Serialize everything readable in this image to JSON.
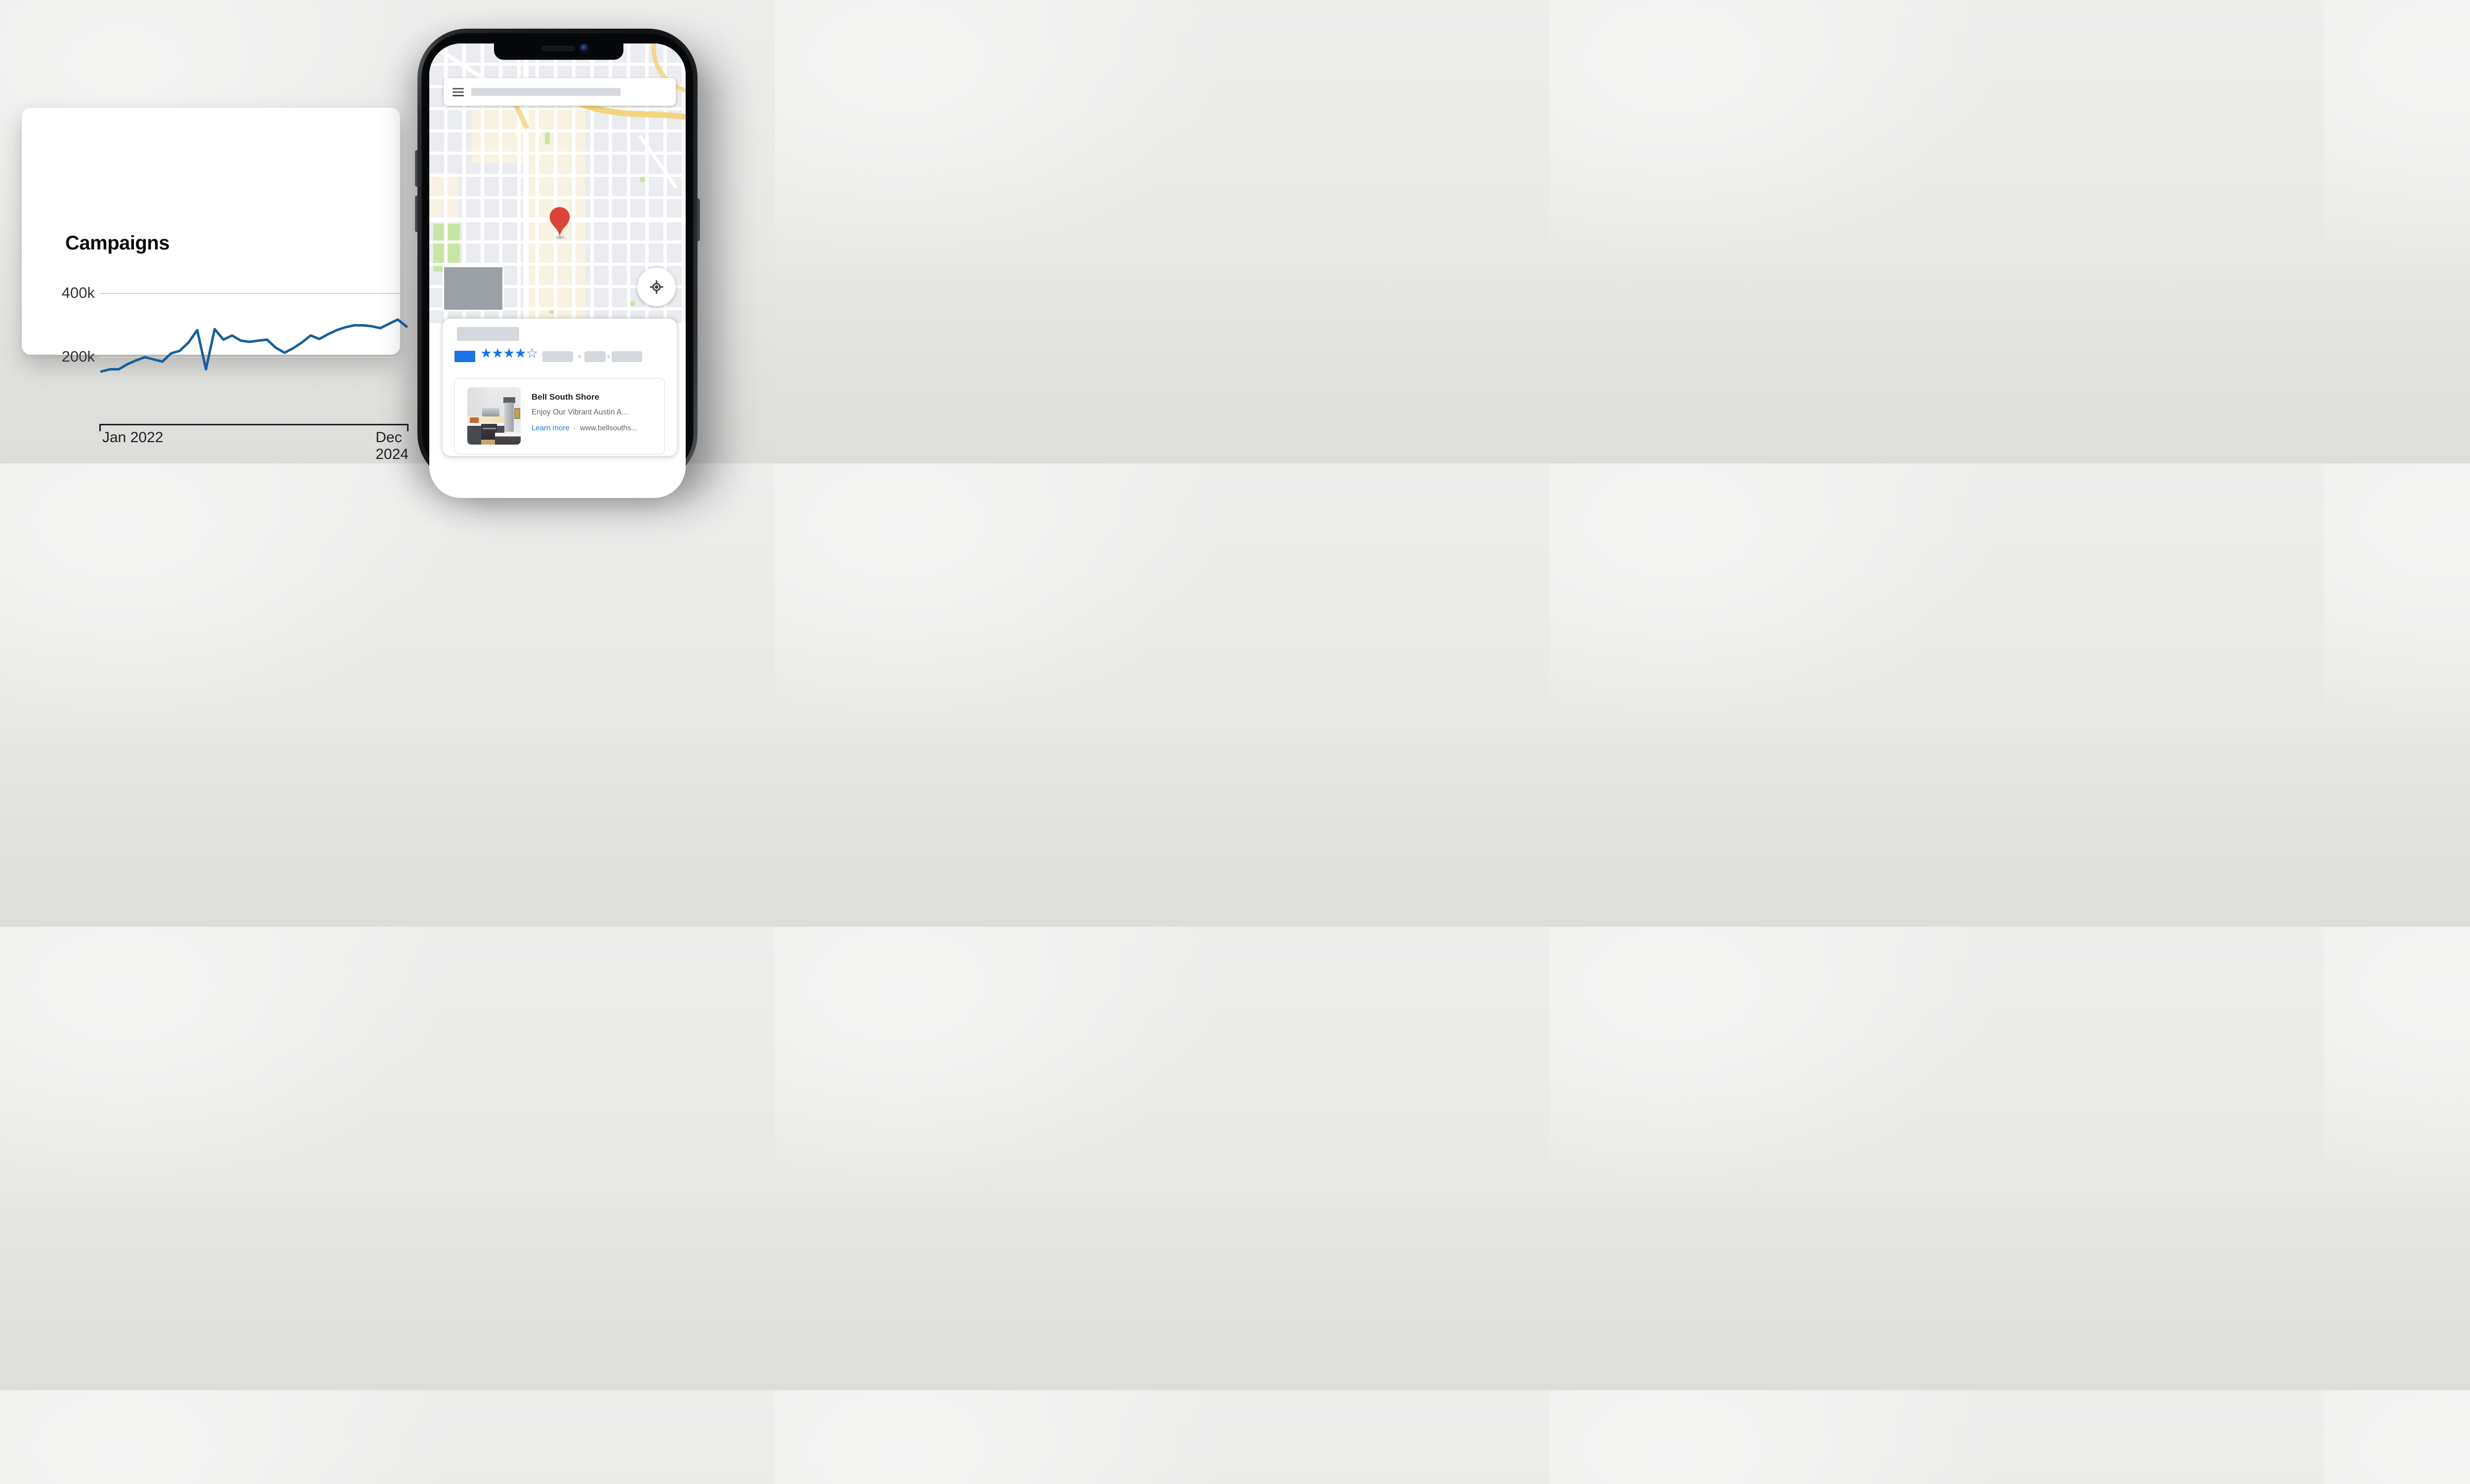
{
  "campaigns_card": {
    "title": "Campaigns",
    "y_axis": {
      "tick_top": "400k",
      "tick_bottom": "200k"
    },
    "x_axis": {
      "start_label": "Jan 2022",
      "end_label": "Dec 2024"
    },
    "line_color": "#16609c",
    "grid_color": "#d2d2d2"
  },
  "chart_data": {
    "type": "line",
    "title": "Campaigns",
    "x_start": "Jan 2022",
    "x_end": "Dec 2024",
    "x_unit": "month",
    "values_unit": "thousands",
    "values": [
      155,
      162,
      162,
      178,
      190,
      200,
      193,
      186,
      212,
      220,
      246,
      285,
      162,
      288,
      255,
      268,
      252,
      248,
      252,
      255,
      230,
      214,
      228,
      246,
      268,
      257,
      272,
      285,
      294,
      300,
      300,
      297,
      291,
      305,
      318,
      296
    ],
    "y_ticks": [
      {
        "label": "400k",
        "value": 400
      },
      {
        "label": "200k",
        "value": 200
      }
    ],
    "ylim": [
      100,
      430
    ],
    "grid": true,
    "legend": false,
    "line_color": "#16609c"
  },
  "phone": {
    "search_bar": {
      "menu_icon": "hamburger-icon",
      "query_placeholder": ""
    },
    "map": {
      "pin_color": "#dc4437",
      "ad_placeholder_color": "#9aa0a6",
      "locate_icon": "crosshair-target-icon",
      "park_color": "#c8e5a3",
      "road_highlight_color": "#f3d57e"
    },
    "bottom_sheet": {
      "rating": {
        "stars_filled": 4,
        "stars_outline": 1,
        "star_color": "#1a73e8",
        "badge_color": "#1a73e8"
      },
      "listing": {
        "name": "Bell South Shore",
        "description": "Enjoy Our Vibrant Austin A...",
        "link_label": "Learn more",
        "separator": "·",
        "url": "www.bellsouths..."
      }
    }
  }
}
